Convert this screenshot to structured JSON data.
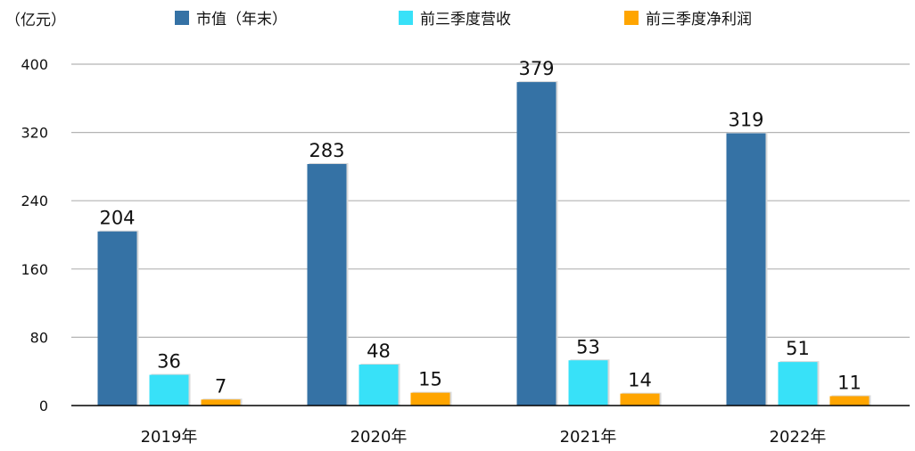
{
  "chart_data": {
    "type": "bar",
    "unit_label": "（亿元）",
    "categories": [
      "2019年",
      "2020年",
      "2021年",
      "2022年"
    ],
    "series": [
      {
        "name": "市值（年末）",
        "color": "#3572A5",
        "values": [
          204,
          283,
          379,
          319
        ]
      },
      {
        "name": "前三季度营收",
        "color": "#38E1F8",
        "values": [
          36,
          48,
          53,
          51
        ]
      },
      {
        "name": "前三季度净利润",
        "color": "#FFA500",
        "values": [
          7,
          15,
          14,
          11
        ]
      }
    ],
    "yticks": [
      0,
      80,
      160,
      240,
      320,
      400
    ],
    "ylim": [
      0,
      400
    ],
    "grid": true,
    "legend": "top"
  }
}
